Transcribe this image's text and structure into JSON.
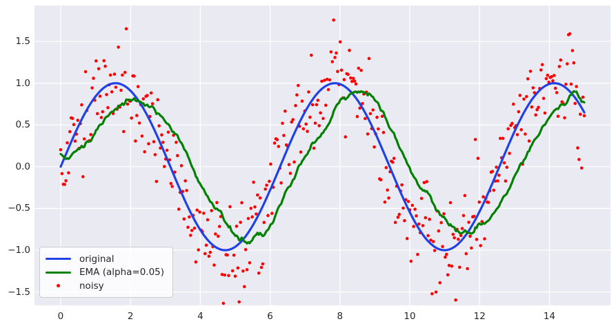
{
  "figure": {
    "background": "#ffffff"
  },
  "chart_data": {
    "type": "line+scatter",
    "title": "",
    "xlabel": "",
    "ylabel": "",
    "xlim": [
      -0.75,
      15.75
    ],
    "ylim": [
      -1.66,
      1.93
    ],
    "x_tick_labels": [
      "0",
      "2",
      "4",
      "6",
      "8",
      "10",
      "12",
      "14"
    ],
    "x_tick_values": [
      0,
      2,
      4,
      6,
      8,
      10,
      12,
      14
    ],
    "y_tick_labels": [
      "−1.5",
      "−1.0",
      "−0.5",
      "0.0",
      "0.5",
      "1.0",
      "1.5"
    ],
    "y_tick_values": [
      -1.5,
      -1.0,
      -0.5,
      0.0,
      0.5,
      1.0,
      1.5
    ],
    "grid": true,
    "plot_background": "#eaeaf2",
    "gridline_color": "#ffffff",
    "tick_label_color": "#262626",
    "series": [
      {
        "name": "original",
        "kind": "line",
        "color": "#1f41e6",
        "linewidth": 3.2,
        "model": "sin(x)",
        "x_start": 0,
        "x_end": 15,
        "n_points": 400,
        "amplitude": 1.0,
        "key_points": [
          [
            0,
            0.0
          ],
          [
            1.57,
            1.0
          ],
          [
            3.14,
            0.0
          ],
          [
            4.71,
            -1.0
          ],
          [
            6.28,
            0.0
          ],
          [
            7.85,
            1.0
          ],
          [
            9.42,
            0.0
          ],
          [
            11.0,
            -1.0
          ],
          [
            12.57,
            0.0
          ],
          [
            14.14,
            1.0
          ],
          [
            15.0,
            0.65
          ]
        ]
      },
      {
        "name": "EMA (alpha=0.05)",
        "kind": "line",
        "color": "#028002",
        "linewidth": 3.2,
        "model": "exponential moving average of noisy series",
        "alpha": 0.05,
        "key_points": [
          [
            0,
            0.15
          ],
          [
            2.2,
            0.86
          ],
          [
            3.9,
            0.0
          ],
          [
            5.3,
            -0.85
          ],
          [
            7.0,
            0.0
          ],
          [
            8.45,
            0.89
          ],
          [
            10.2,
            0.0
          ],
          [
            11.6,
            -0.87
          ],
          [
            13.1,
            0.0
          ],
          [
            14.35,
            0.88
          ],
          [
            15.0,
            0.75
          ]
        ]
      },
      {
        "name": "noisy",
        "kind": "scatter",
        "color": "#ff0000",
        "marker": "dot",
        "marker_radius_px": 2.3,
        "model": "sin(x) + gaussian noise (std ≈ 0.3)",
        "x_start": 0,
        "x_end": 15,
        "n_points": 400,
        "y_min": -1.62,
        "y_max": 1.85
      }
    ],
    "legend": {
      "location": "lower left",
      "entries": [
        "original",
        "EMA (alpha=0.05)",
        "noisy"
      ]
    }
  }
}
